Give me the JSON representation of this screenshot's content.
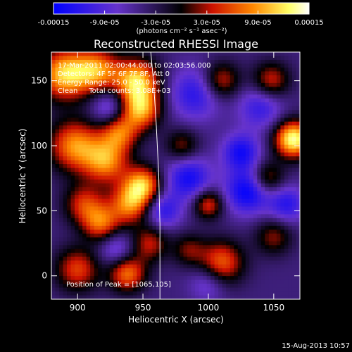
{
  "chart_data": {
    "type": "heatmap",
    "title": "Reconstructed RHESSI Image",
    "xlabel": "Heliocentric X (arcsec)",
    "ylabel": "Heliocentric Y (arcsec)",
    "xlim": [
      880,
      1070
    ],
    "ylim": [
      -18,
      172
    ],
    "xticks": [
      900,
      950,
      1000,
      1050
    ],
    "xtick_labels": [
      "900",
      "950",
      "1000",
      "1050"
    ],
    "yticks": [
      0,
      50,
      100,
      150
    ],
    "ytick_labels": [
      "0",
      "50",
      "100",
      "150"
    ],
    "colorbar": {
      "range": [
        -0.00015,
        0.00015
      ],
      "tick_values": [
        -0.00015,
        -9e-05,
        -3e-05,
        3e-05,
        9e-05,
        0.00015
      ],
      "tick_labels": [
        "-0.00015",
        "-9.0e-05",
        "-3.0e-05",
        "3.0e-05",
        "9.0e-05",
        "0.00015"
      ],
      "unit_label": "(photons cm⁻² s⁻¹ asec⁻²)"
    },
    "annotations": {
      "time_range": "17-Mar-2011 02:00:44.000 to 02:03:56.000",
      "detectors": "Detectors: 4F 5F 6F 7F 8F, Att 0",
      "energy": "Energy Range: 25.0 - 50.0 keV",
      "method": "Clean     Total counts: 3.08E+03",
      "peak": "Position of Peak = [1065,105]"
    },
    "peak_position": [
      1065,
      105
    ],
    "limb_curve": [
      [
        956,
        172
      ],
      [
        958,
        150
      ],
      [
        960,
        120
      ],
      [
        962,
        80
      ],
      [
        963,
        40
      ],
      [
        963,
        0
      ],
      [
        963,
        -18
      ]
    ],
    "grid": false,
    "colormap": [
      "#0000ff",
      "#6633cc",
      "#000000",
      "#cc1100",
      "#ff8800",
      "#ffff66",
      "#ffffff"
    ],
    "blobs": [
      {
        "x": 890,
        "y": 155,
        "v": 1.0,
        "s": 14
      },
      {
        "x": 915,
        "y": 158,
        "v": 0.8,
        "s": 12
      },
      {
        "x": 945,
        "y": 150,
        "v": 1.0,
        "s": 12
      },
      {
        "x": 948,
        "y": 128,
        "v": 0.9,
        "s": 11
      },
      {
        "x": 932,
        "y": 110,
        "v": 0.7,
        "s": 10
      },
      {
        "x": 898,
        "y": 100,
        "v": 0.85,
        "s": 14
      },
      {
        "x": 922,
        "y": 88,
        "v": 0.8,
        "s": 12
      },
      {
        "x": 950,
        "y": 70,
        "v": 0.9,
        "s": 10
      },
      {
        "x": 940,
        "y": 55,
        "v": 0.8,
        "s": 11
      },
      {
        "x": 905,
        "y": 55,
        "v": 0.6,
        "s": 11
      },
      {
        "x": 918,
        "y": 40,
        "v": 0.7,
        "s": 10
      },
      {
        "x": 955,
        "y": 25,
        "v": 0.55,
        "s": 10
      },
      {
        "x": 938,
        "y": 2,
        "v": 0.8,
        "s": 10
      },
      {
        "x": 900,
        "y": 5,
        "v": 0.65,
        "s": 12
      },
      {
        "x": 1000,
        "y": 55,
        "v": 0.65,
        "s": 8
      },
      {
        "x": 1010,
        "y": 150,
        "v": 0.6,
        "s": 10
      },
      {
        "x": 1048,
        "y": 150,
        "v": 0.6,
        "s": 10
      },
      {
        "x": 1045,
        "y": 75,
        "v": 0.55,
        "s": 9
      },
      {
        "x": 1010,
        "y": 10,
        "v": 0.75,
        "s": 12
      },
      {
        "x": 1050,
        "y": 30,
        "v": 0.45,
        "s": 10
      },
      {
        "x": 1065,
        "y": 105,
        "v": 1.2,
        "s": 10
      },
      {
        "x": 980,
        "y": 100,
        "v": 0.45,
        "s": 9
      },
      {
        "x": 985,
        "y": 20,
        "v": 0.4,
        "s": 9
      },
      {
        "x": 1030,
        "y": 65,
        "v": -0.7,
        "s": 12
      },
      {
        "x": 1025,
        "y": 95,
        "v": -0.6,
        "s": 10
      },
      {
        "x": 990,
        "y": 140,
        "v": -0.5,
        "s": 14
      },
      {
        "x": 985,
        "y": 75,
        "v": -0.6,
        "s": 12
      },
      {
        "x": 1040,
        "y": 130,
        "v": -0.45,
        "s": 12
      },
      {
        "x": 1060,
        "y": 55,
        "v": -0.5,
        "s": 10
      },
      {
        "x": 925,
        "y": 130,
        "v": -0.45,
        "s": 10
      },
      {
        "x": 930,
        "y": 20,
        "v": -0.4,
        "s": 10
      },
      {
        "x": 965,
        "y": 50,
        "v": -0.5,
        "s": 10
      },
      {
        "x": 1000,
        "y": -5,
        "v": -0.35,
        "s": 10
      }
    ],
    "background_level": -0.3
  },
  "footer": {
    "date_stamp": "15-Aug-2013 10:57"
  }
}
